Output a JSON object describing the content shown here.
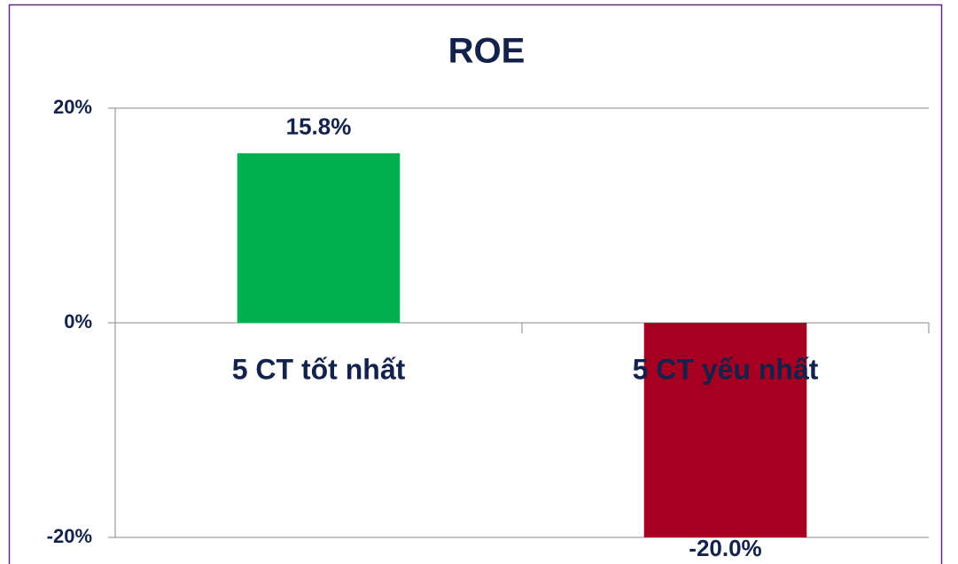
{
  "chart_data": {
    "type": "bar",
    "title": "ROE",
    "categories": [
      "5 CT tốt nhất",
      "5 CT yếu nhất"
    ],
    "values": [
      15.8,
      -20.0
    ],
    "value_labels": [
      "15.8%",
      "-20.0%"
    ],
    "colors": [
      "#00b050",
      "#a50021"
    ],
    "ylim": [
      -20,
      20
    ],
    "yticks": [
      {
        "value": -20,
        "label": "-20%"
      },
      {
        "value": 0,
        "label": "0%"
      },
      {
        "value": 20,
        "label": "20%"
      }
    ],
    "grid": true
  }
}
